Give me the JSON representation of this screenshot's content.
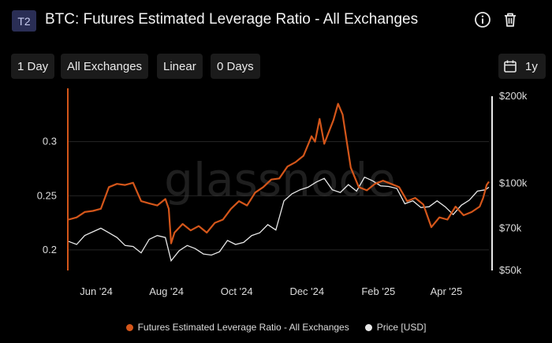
{
  "header": {
    "badge": "T2",
    "title": "BTC: Futures Estimated Leverage Ratio - All Exchanges",
    "icons": [
      "info-icon",
      "trash-icon"
    ]
  },
  "toolbar": {
    "resolution": "1 Day",
    "exchange": "All Exchanges",
    "scale": "Linear",
    "moving_average": "0 Days",
    "range": "1y",
    "calendar_icon": "calendar-icon"
  },
  "colors": {
    "leverage": "#d4561a",
    "price": "#e8e8e8",
    "background": "#000000",
    "grid": "#262626"
  },
  "watermark": "glassnode",
  "chart_data": {
    "type": "line",
    "left_axis": {
      "ticks": [
        "0.2",
        "0.25",
        "0.3"
      ],
      "tick_values": [
        0.2,
        0.25,
        0.3
      ],
      "range": [
        0.181,
        0.342
      ]
    },
    "right_axis": {
      "scale": "log",
      "ticks": [
        "$50k",
        "$70k",
        "$100k",
        "$200k"
      ],
      "tick_values": [
        50000,
        70000,
        100000,
        200000
      ],
      "range": [
        50000,
        200000
      ]
    },
    "x_ticks": [
      "Jun '24",
      "Aug '24",
      "Oct '24",
      "Dec '24",
      "Feb '25",
      "Apr '25"
    ],
    "x_tick_dates": [
      "2024-06-01",
      "2024-08-01",
      "2024-10-01",
      "2024-12-01",
      "2025-02-01",
      "2025-04-01"
    ],
    "x_range": [
      "2024-05-08",
      "2025-05-08"
    ],
    "series": [
      {
        "name": "Futures Estimated Leverage Ratio - All Exchanges",
        "axis": "left",
        "x": [
          "2024-05-08",
          "2024-05-15",
          "2024-05-22",
          "2024-05-29",
          "2024-06-05",
          "2024-06-12",
          "2024-06-19",
          "2024-06-26",
          "2024-07-03",
          "2024-07-10",
          "2024-07-17",
          "2024-07-24",
          "2024-07-31",
          "2024-08-03",
          "2024-08-05",
          "2024-08-08",
          "2024-08-15",
          "2024-08-22",
          "2024-08-29",
          "2024-09-05",
          "2024-09-12",
          "2024-09-19",
          "2024-09-26",
          "2024-10-03",
          "2024-10-10",
          "2024-10-17",
          "2024-10-24",
          "2024-10-31",
          "2024-11-07",
          "2024-11-14",
          "2024-11-21",
          "2024-11-28",
          "2024-12-05",
          "2024-12-08",
          "2024-12-12",
          "2024-12-16",
          "2024-12-20",
          "2024-12-24",
          "2024-12-28",
          "2025-01-01",
          "2025-01-08",
          "2025-01-15",
          "2025-01-22",
          "2025-01-29",
          "2025-02-05",
          "2025-02-12",
          "2025-02-19",
          "2025-02-26",
          "2025-03-05",
          "2025-03-12",
          "2025-03-19",
          "2025-03-26",
          "2025-04-02",
          "2025-04-09",
          "2025-04-16",
          "2025-04-23",
          "2025-04-30",
          "2025-05-03",
          "2025-05-06",
          "2025-05-08"
        ],
        "y": [
          0.228,
          0.23,
          0.235,
          0.236,
          0.238,
          0.258,
          0.261,
          0.26,
          0.262,
          0.245,
          0.243,
          0.241,
          0.247,
          0.238,
          0.206,
          0.216,
          0.224,
          0.218,
          0.222,
          0.216,
          0.225,
          0.228,
          0.238,
          0.245,
          0.241,
          0.253,
          0.258,
          0.265,
          0.266,
          0.277,
          0.281,
          0.287,
          0.305,
          0.3,
          0.321,
          0.298,
          0.309,
          0.32,
          0.335,
          0.325,
          0.276,
          0.258,
          0.255,
          0.261,
          0.264,
          0.261,
          0.258,
          0.245,
          0.248,
          0.242,
          0.221,
          0.23,
          0.228,
          0.24,
          0.232,
          0.235,
          0.24,
          0.248,
          0.26,
          0.263
        ]
      },
      {
        "name": "Price [USD]",
        "axis": "right",
        "x": [
          "2024-05-08",
          "2024-05-15",
          "2024-05-22",
          "2024-05-29",
          "2024-06-05",
          "2024-06-12",
          "2024-06-19",
          "2024-06-26",
          "2024-07-03",
          "2024-07-10",
          "2024-07-17",
          "2024-07-24",
          "2024-07-31",
          "2024-08-05",
          "2024-08-12",
          "2024-08-19",
          "2024-08-26",
          "2024-09-02",
          "2024-09-09",
          "2024-09-16",
          "2024-09-23",
          "2024-09-30",
          "2024-10-07",
          "2024-10-14",
          "2024-10-21",
          "2024-10-28",
          "2024-11-04",
          "2024-11-11",
          "2024-11-18",
          "2024-11-25",
          "2024-12-02",
          "2024-12-09",
          "2024-12-16",
          "2024-12-23",
          "2024-12-30",
          "2025-01-06",
          "2025-01-13",
          "2025-01-20",
          "2025-01-27",
          "2025-02-03",
          "2025-02-10",
          "2025-02-17",
          "2025-02-24",
          "2025-03-03",
          "2025-03-10",
          "2025-03-17",
          "2025-03-24",
          "2025-03-31",
          "2025-04-07",
          "2025-04-14",
          "2025-04-21",
          "2025-04-28",
          "2025-05-05",
          "2025-05-08"
        ],
        "y": [
          63000,
          61500,
          66000,
          68000,
          70000,
          67500,
          65000,
          61000,
          60500,
          57500,
          64000,
          66000,
          65000,
          54000,
          58500,
          61000,
          59500,
          57000,
          56500,
          58000,
          63500,
          61500,
          62500,
          66000,
          67500,
          72000,
          69000,
          87000,
          92000,
          95000,
          97000,
          101000,
          104000,
          95000,
          93000,
          99000,
          94000,
          105000,
          102000,
          98000,
          97500,
          96000,
          85000,
          87000,
          82500,
          83000,
          87000,
          83000,
          78000,
          84000,
          87500,
          94000,
          95000,
          97000
        ]
      }
    ]
  },
  "legend": [
    {
      "label": "Futures Estimated Leverage Ratio - All Exchanges",
      "color": "#d4561a"
    },
    {
      "label": "Price [USD]",
      "color": "#e8e8e8"
    }
  ]
}
